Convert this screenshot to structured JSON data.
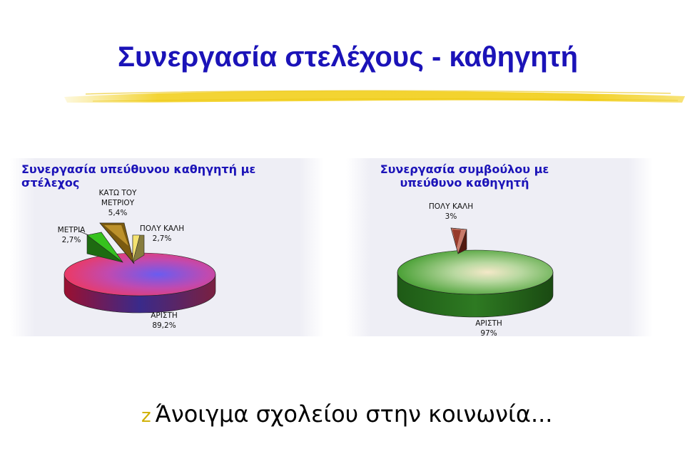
{
  "slide": {
    "title": "Συνεργασία στελέχους - καθηγητή",
    "footer_text": "Άνοιγμα σχολείου στην κοινωνία...",
    "bullet_icon": "z-bullet-icon"
  },
  "colors": {
    "title": "#1b13b8",
    "brush": "#f2d020",
    "bullet": "#d0b000"
  },
  "chart_data": [
    {
      "type": "pie",
      "title": "Συνεργασία υπεύθυνου καθηγητή με στέλεχος",
      "slices": [
        {
          "label": "ΑΡΙΣΤΗ",
          "value": 89.2,
          "value_label": "89,2%",
          "color": "#e83b6a"
        },
        {
          "label": "ΜΕΤΡΙΑ",
          "value": 2.7,
          "value_label": "2,7%",
          "color": "#36c21e"
        },
        {
          "label": "ΚΑΤΩ ΤΟΥ ΜΕΤΡΙΟΥ",
          "value": 5.4,
          "value_label": "5,4%",
          "color": "#7a5a10"
        },
        {
          "label": "ΠΟΛΥ ΚΑΛΗ",
          "value": 2.7,
          "value_label": "2,7%",
          "color": "#f4e270"
        }
      ]
    },
    {
      "type": "pie",
      "title": "Συνεργασία συμβούλου με υπεύθυνο καθηγητή",
      "slices": [
        {
          "label": "ΑΡΙΣΤΗ",
          "value": 97,
          "value_label": "97%",
          "color": "#3e9a2a"
        },
        {
          "label": "ΠΟΛΥ ΚΑΛΗ",
          "value": 3,
          "value_label": "3%",
          "color": "#8a2a1a"
        }
      ]
    }
  ]
}
